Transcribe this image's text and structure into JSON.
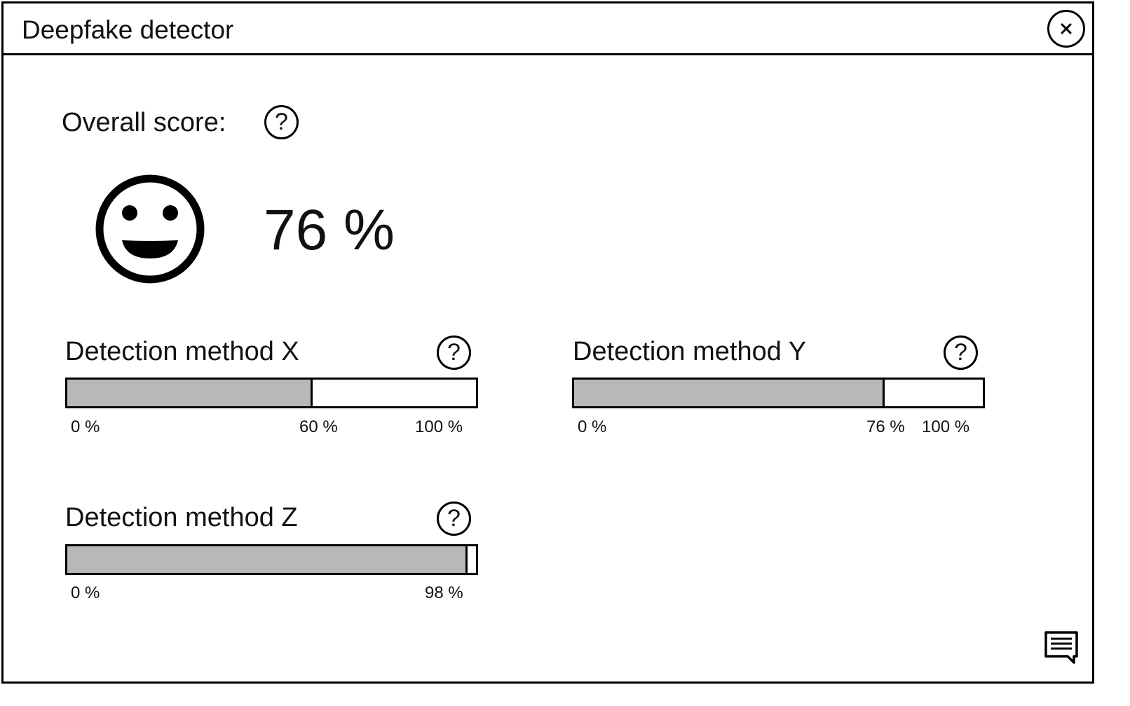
{
  "window": {
    "title": "Deepfake detector",
    "close_icon": "close-icon"
  },
  "overall": {
    "label": "Overall score:",
    "value_text": "76 %",
    "value": 76,
    "face_icon": "smiley-face-icon",
    "help_glyph": "?"
  },
  "methods": [
    {
      "title": "Detection method X",
      "help_glyph": "?",
      "value": 60,
      "ticks": {
        "start": "0 %",
        "value": "60 %",
        "end": "100 %"
      }
    },
    {
      "title": "Detection method Y",
      "help_glyph": "?",
      "value": 76,
      "ticks": {
        "start": "0 %",
        "value": "76 %",
        "end": "100 %"
      }
    },
    {
      "title": "Detection method Z",
      "help_glyph": "?",
      "value": 98,
      "ticks": {
        "start": "0 %",
        "value": "98 %"
      }
    }
  ],
  "feedback_icon": "comment-icon",
  "colors": {
    "border": "#000000",
    "bar_fill": "#b8b8b8",
    "background": "#ffffff"
  }
}
